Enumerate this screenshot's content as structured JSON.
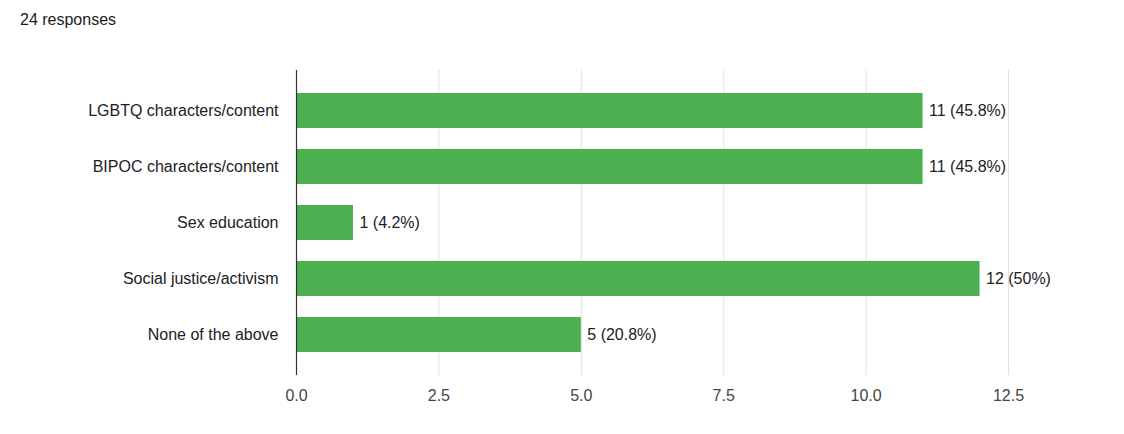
{
  "chart_data": {
    "type": "bar",
    "title": "24 responses",
    "orientation": "horizontal",
    "categories": [
      "LGBTQ characters/content",
      "BIPOC characters/content",
      "Sex education",
      "Social justice/activism",
      "None of the above"
    ],
    "values": [
      11,
      11,
      1,
      12,
      5
    ],
    "value_labels": [
      "11 (45.8%)",
      "11 (45.8%)",
      "1 (4.2%)",
      "12 (50%)",
      "5 (20.8%)"
    ],
    "color": "#4caf50",
    "xlim": [
      0,
      12.5
    ],
    "xticks": [
      {
        "value": 0,
        "label": "0.0"
      },
      2.5,
      {
        "value": 5,
        "label": "5.0"
      },
      7.5,
      {
        "value": 10,
        "label": "10.0"
      },
      12.5
    ],
    "grid": true,
    "data_labels": true
  }
}
